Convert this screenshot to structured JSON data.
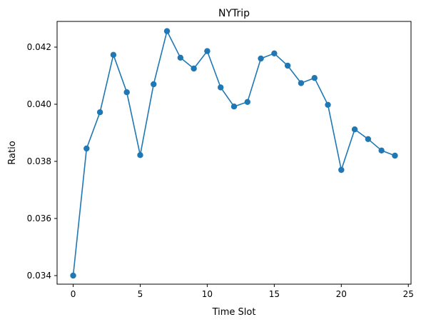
{
  "chart_data": {
    "type": "line",
    "title": "NYTrip",
    "xlabel": "Time Slot",
    "ylabel": "Ratio",
    "xlim": [
      -1.2,
      25.2
    ],
    "ylim": [
      0.0337,
      0.0429
    ],
    "xticks": [
      0,
      5,
      10,
      15,
      20,
      25
    ],
    "xtick_labels": [
      "0",
      "5",
      "10",
      "15",
      "20",
      "25"
    ],
    "yticks": [
      0.034,
      0.036,
      0.038,
      0.04,
      0.042
    ],
    "ytick_labels": [
      "0.034",
      "0.036",
      "0.038",
      "0.040",
      "0.042"
    ],
    "grid": false,
    "series": [
      {
        "color": "#1f77b4",
        "marker": "circle",
        "x": [
          0,
          1,
          2,
          3,
          4,
          5,
          6,
          7,
          8,
          9,
          10,
          11,
          12,
          13,
          14,
          15,
          16,
          17,
          18,
          19,
          20,
          21,
          22,
          23,
          24
        ],
        "y": [
          0.034,
          0.03845,
          0.03972,
          0.04173,
          0.04042,
          0.03822,
          0.0407,
          0.04256,
          0.04163,
          0.04125,
          0.04186,
          0.04059,
          0.03992,
          0.04008,
          0.0416,
          0.04178,
          0.04135,
          0.04074,
          0.04092,
          0.03998,
          0.0377,
          0.03912,
          0.03878,
          0.03838,
          0.0382
        ]
      }
    ]
  }
}
